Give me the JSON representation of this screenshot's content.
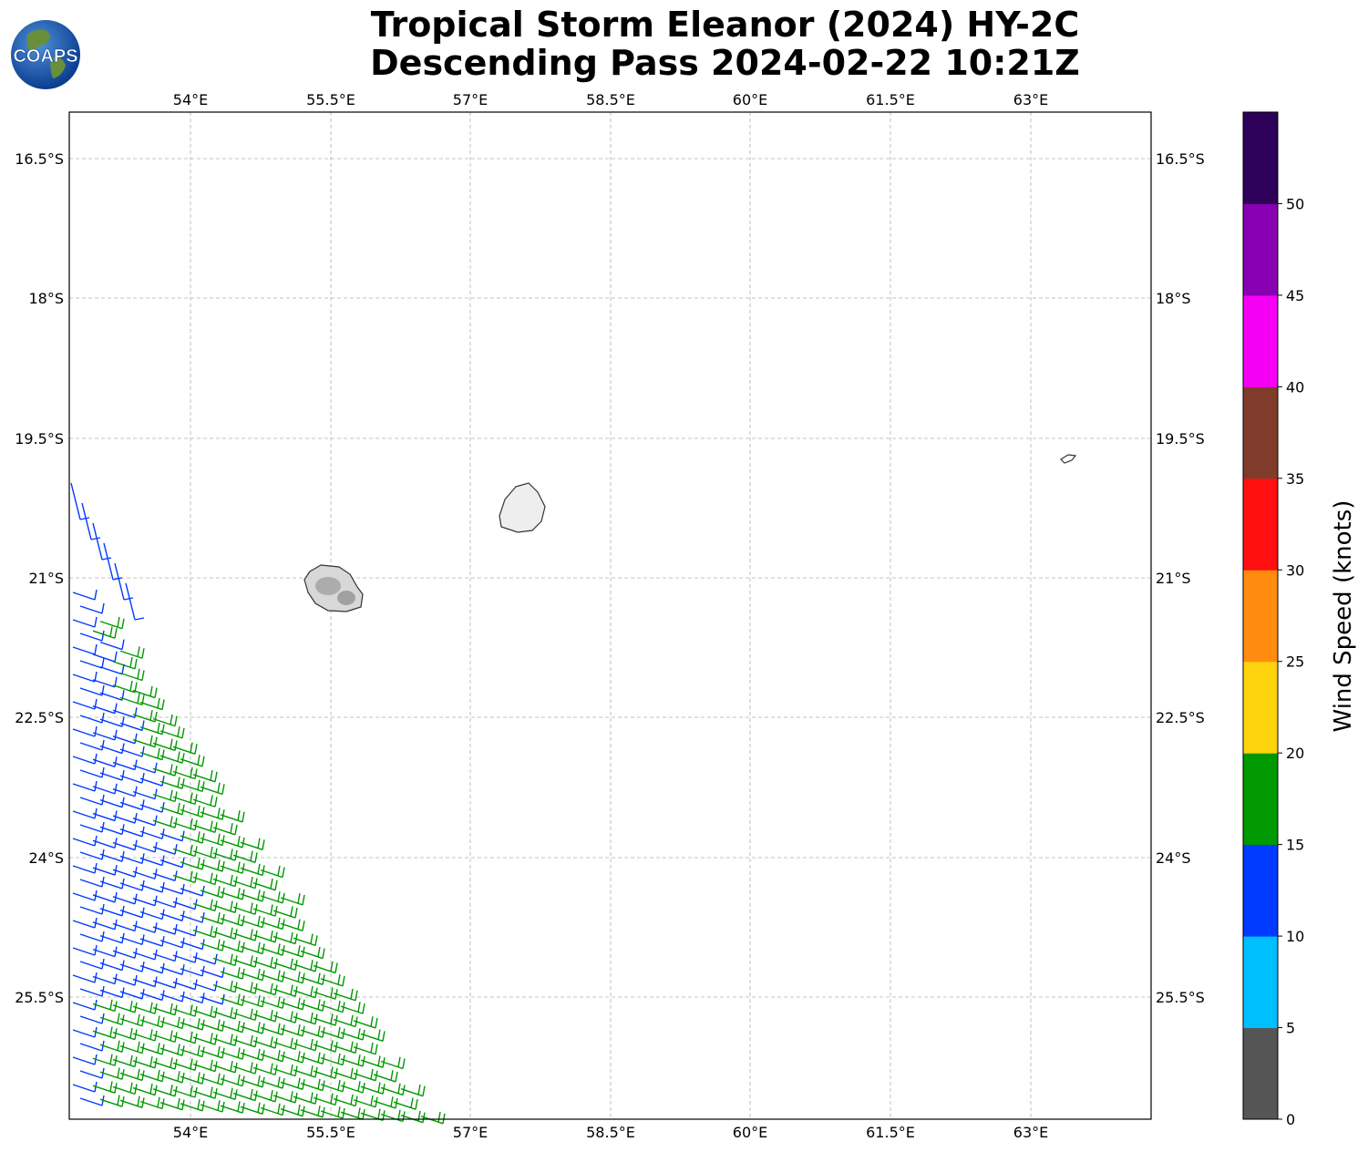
{
  "title": {
    "line1": "Tropical Storm Eleanor (2024) HY-2C",
    "line2": "Descending Pass 2024-02-22 10:21Z"
  },
  "logo": {
    "text": "COAPS",
    "icon": "globe-icon"
  },
  "map": {
    "lon_range": [
      52.6,
      64.1
    ],
    "lat_range": [
      -27.0,
      -16.0
    ],
    "lon_ticks": [
      "54°E",
      "55.5°E",
      "57°E",
      "58.5°E",
      "60°E",
      "61.5°E",
      "63°E"
    ],
    "lat_ticks": [
      "16.5°S",
      "18°S",
      "19.5°S",
      "21°S",
      "22.5°S",
      "24°S",
      "25.5°S"
    ],
    "gridlines": true,
    "islands": [
      "Réunion",
      "Mauritius",
      "Rodrigues"
    ]
  },
  "colorbar": {
    "label": "Wind Speed (knots)",
    "ticks": [
      "0",
      "5",
      "10",
      "15",
      "20",
      "25",
      "30",
      "35",
      "40",
      "45",
      "50"
    ],
    "colors": [
      "#555555",
      "#00bfff",
      "#0039ff",
      "#009900",
      "#ffd40e",
      "#ff8c0f",
      "#ff0f0f",
      "#803c2a",
      "#f500f5",
      "#8800b2",
      "#2d0059"
    ],
    "range": [
      0,
      55
    ]
  },
  "chart_data": {
    "type": "wind-barbs",
    "legend_placement": "right",
    "wind_field": "Wind barbs along swath edge in lower-left of map, speeds roughly 10–20 knots (blue and green barbs), winds from the east-southeast."
  }
}
